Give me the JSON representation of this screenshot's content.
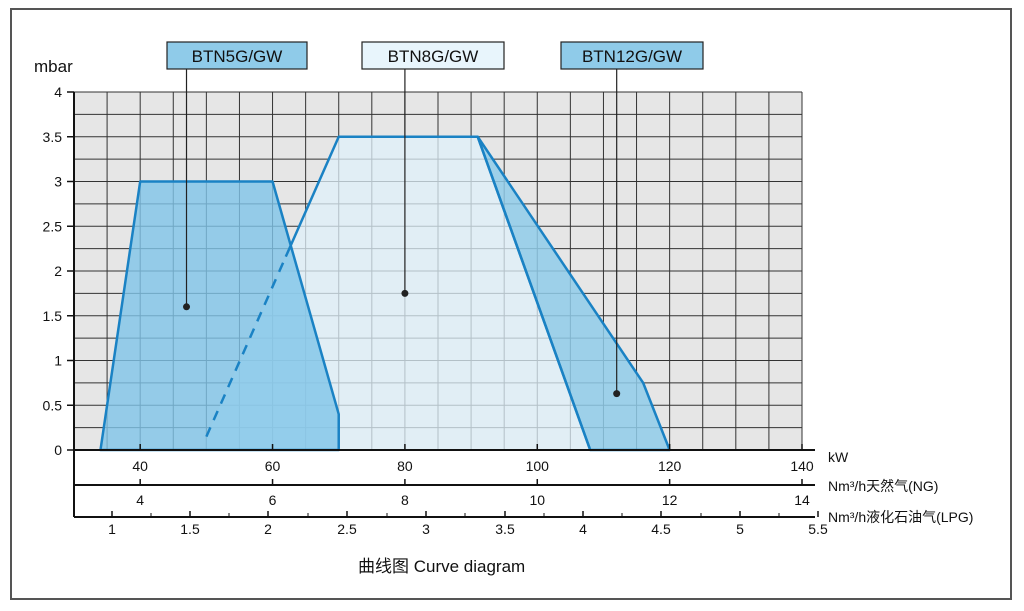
{
  "chart_data": {
    "type": "area",
    "caption": "曲线图 Curve diagram",
    "ylabel": "mbar",
    "ylim": [
      0,
      4
    ],
    "y_ticks": [
      "4",
      "3.5",
      "3",
      "2.5",
      "2",
      "1.5",
      "1",
      "0.5",
      "0"
    ],
    "grid": true,
    "x_axes": [
      {
        "unit": "kW",
        "range": [
          30,
          140
        ],
        "ticks": [
          "40",
          "60",
          "80",
          "100",
          "120",
          "140"
        ]
      },
      {
        "unit": "Nm³/h天然气(NG)",
        "range": [
          3,
          14
        ],
        "ticks": [
          "4",
          "6",
          "8",
          "10",
          "12",
          "14"
        ]
      },
      {
        "unit": "Nm³/h液化石油气(LPG)",
        "range": [
          0.75,
          5.5
        ],
        "ticks": [
          "1",
          "1.5",
          "2",
          "2.5",
          "3",
          "3.5",
          "4",
          "4.5",
          "5",
          "5.5"
        ]
      }
    ],
    "series": [
      {
        "name": "BTN5G/GW",
        "color": "#7fc4e8",
        "points": [
          [
            34,
            0
          ],
          [
            40,
            3
          ],
          [
            60,
            3
          ],
          [
            70,
            0.4
          ],
          [
            70,
            0
          ]
        ]
      },
      {
        "name": "BTN8G/GW",
        "color": "#dff0fa",
        "points": [
          [
            50,
            0.15
          ],
          [
            70,
            3.5
          ],
          [
            91,
            3.5
          ],
          [
            108,
            0
          ]
        ]
      },
      {
        "name": "BTN12G/GW",
        "color": "#8fcbe9",
        "points": [
          [
            91,
            3.5
          ],
          [
            116,
            0.75
          ],
          [
            120,
            0
          ],
          [
            108,
            0
          ]
        ]
      }
    ],
    "label_anchor_points": [
      [
        47,
        1.6
      ],
      [
        80,
        1.75
      ],
      [
        112,
        0.63
      ]
    ]
  }
}
